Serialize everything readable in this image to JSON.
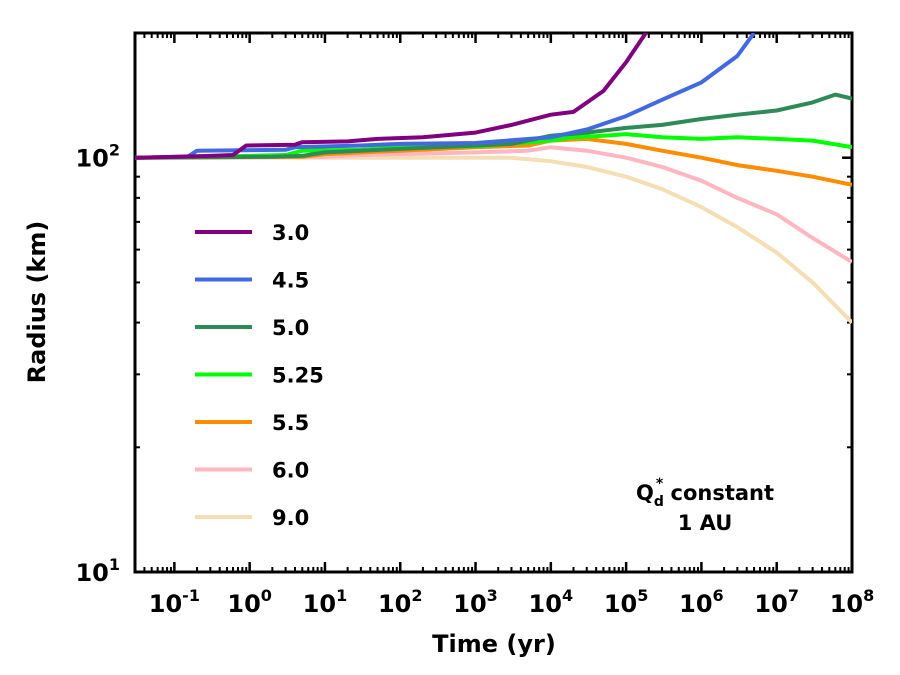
{
  "chart_data": {
    "type": "line",
    "title": "",
    "xlabel": "Time (yr)",
    "ylabel": "Radius (km)",
    "xscale": "log",
    "yscale": "log",
    "xlim": [
      0.03,
      100000000
    ],
    "ylim": [
      10,
      200
    ],
    "grid": false,
    "legend_placement": "left",
    "x_ticks": [
      {
        "value": 0.1,
        "base": "10",
        "exp": "-1"
      },
      {
        "value": 1,
        "base": "10",
        "exp": "0"
      },
      {
        "value": 10,
        "base": "10",
        "exp": "1"
      },
      {
        "value": 100,
        "base": "10",
        "exp": "2"
      },
      {
        "value": 1000,
        "base": "10",
        "exp": "3"
      },
      {
        "value": 10000,
        "base": "10",
        "exp": "4"
      },
      {
        "value": 100000,
        "base": "10",
        "exp": "5"
      },
      {
        "value": 1000000,
        "base": "10",
        "exp": "6"
      },
      {
        "value": 10000000,
        "base": "10",
        "exp": "7"
      },
      {
        "value": 100000000,
        "base": "10",
        "exp": "8"
      }
    ],
    "y_ticks": [
      {
        "value": 10,
        "base": "10",
        "exp": "1"
      },
      {
        "value": 100,
        "base": "10",
        "exp": "2"
      }
    ],
    "annotation": {
      "line1_base": "Q",
      "line1_sub": "d",
      "line1_sup": "*",
      "line1_rest": " constant",
      "line2": "1 AU"
    },
    "series": [
      {
        "name": "3.0",
        "color": "#800080",
        "points": [
          [
            0.03,
            100
          ],
          [
            0.3,
            101
          ],
          [
            0.6,
            101.5
          ],
          [
            0.9,
            107
          ],
          [
            4,
            107.5
          ],
          [
            5,
            109
          ],
          [
            20,
            109.5
          ],
          [
            50,
            111
          ],
          [
            200,
            112
          ],
          [
            1000,
            115
          ],
          [
            3000,
            120
          ],
          [
            10000,
            127
          ],
          [
            20000,
            129
          ],
          [
            50000,
            145
          ],
          [
            100000,
            170
          ],
          [
            200000,
            205
          ]
        ]
      },
      {
        "name": "4.5",
        "color": "#4169e1",
        "points": [
          [
            0.03,
            100
          ],
          [
            0.15,
            100.5
          ],
          [
            0.2,
            104
          ],
          [
            3,
            104.5
          ],
          [
            4,
            106
          ],
          [
            30,
            107
          ],
          [
            100,
            108
          ],
          [
            1000,
            108.5
          ],
          [
            10000,
            112
          ],
          [
            30000,
            117
          ],
          [
            100000,
            126
          ],
          [
            300000,
            138
          ],
          [
            1000000,
            152
          ],
          [
            3000000,
            176
          ],
          [
            5000000,
            200
          ]
        ]
      },
      {
        "name": "5.0",
        "color": "#2e8b57",
        "points": [
          [
            0.03,
            100
          ],
          [
            2,
            100.5
          ],
          [
            5,
            101
          ],
          [
            10,
            103
          ],
          [
            100,
            105
          ],
          [
            1000,
            107
          ],
          [
            3000,
            108
          ],
          [
            10000,
            113
          ],
          [
            30000,
            115
          ],
          [
            100000,
            118
          ],
          [
            300000,
            120
          ],
          [
            1000000,
            124
          ],
          [
            3000000,
            127
          ],
          [
            10000000,
            130
          ],
          [
            30000000,
            136
          ],
          [
            60000000,
            142
          ],
          [
            100000000,
            139
          ]
        ]
      },
      {
        "name": "5.25",
        "color": "#00ff00",
        "points": [
          [
            0.03,
            100
          ],
          [
            1,
            101
          ],
          [
            3,
            101.5
          ],
          [
            5,
            104
          ],
          [
            30,
            104.5
          ],
          [
            100,
            106
          ],
          [
            1000,
            106.5
          ],
          [
            10000,
            110
          ],
          [
            20000,
            112
          ],
          [
            50000,
            113
          ],
          [
            100000,
            114
          ],
          [
            300000,
            112
          ],
          [
            1000000,
            111
          ],
          [
            3000000,
            112
          ],
          [
            10000000,
            111
          ],
          [
            30000000,
            110
          ],
          [
            100000000,
            106
          ]
        ]
      },
      {
        "name": "5.5",
        "color": "#ff8c00",
        "points": [
          [
            0.03,
            100
          ],
          [
            5,
            100.5
          ],
          [
            10,
            102
          ],
          [
            100,
            104
          ],
          [
            1000,
            106
          ],
          [
            5000,
            107
          ],
          [
            10000,
            110
          ],
          [
            30000,
            111
          ],
          [
            100000,
            108
          ],
          [
            300000,
            104
          ],
          [
            1000000,
            100
          ],
          [
            3000000,
            96
          ],
          [
            10000000,
            93
          ],
          [
            30000000,
            90
          ],
          [
            100000000,
            86
          ]
        ]
      },
      {
        "name": "6.0",
        "color": "#ffb6c1",
        "points": [
          [
            0.03,
            100
          ],
          [
            10,
            100.5
          ],
          [
            30,
            101.5
          ],
          [
            100,
            102
          ],
          [
            1000,
            103
          ],
          [
            5000,
            104
          ],
          [
            10000,
            106
          ],
          [
            30000,
            104
          ],
          [
            100000,
            100
          ],
          [
            300000,
            95
          ],
          [
            1000000,
            88
          ],
          [
            3000000,
            80
          ],
          [
            10000000,
            73
          ],
          [
            30000000,
            64
          ],
          [
            100000000,
            56
          ]
        ]
      },
      {
        "name": "9.0",
        "color": "#f5deb3",
        "points": [
          [
            0.03,
            100
          ],
          [
            1,
            100
          ],
          [
            10,
            100
          ],
          [
            100,
            100
          ],
          [
            1000,
            100
          ],
          [
            3000,
            100
          ],
          [
            10000,
            98
          ],
          [
            30000,
            95
          ],
          [
            100000,
            90
          ],
          [
            300000,
            84
          ],
          [
            1000000,
            76
          ],
          [
            3000000,
            68
          ],
          [
            10000000,
            59
          ],
          [
            30000000,
            50
          ],
          [
            100000000,
            40
          ]
        ]
      }
    ]
  }
}
